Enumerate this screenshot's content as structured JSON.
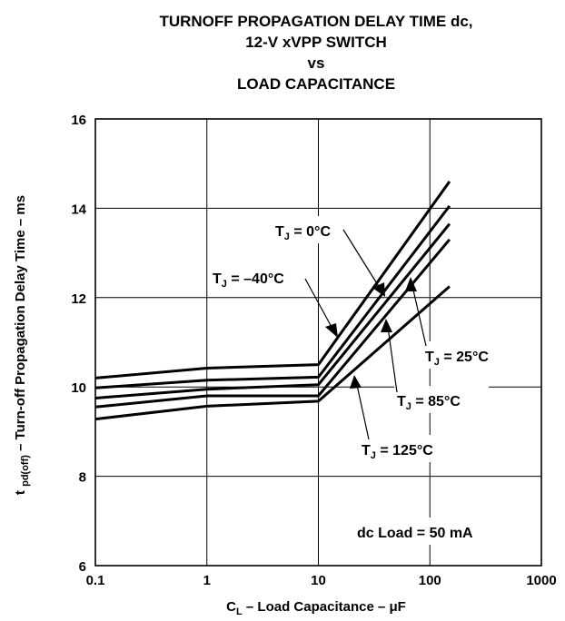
{
  "chart_data": {
    "type": "line",
    "title_lines": [
      "TURNOFF PROPAGATION DELAY TIME dc,",
      "12-V xVPP SWITCH",
      "vs",
      "LOAD CAPACITANCE"
    ],
    "xlabel": {
      "prefix": "C",
      "sub": "L",
      "suffix": " – Load Capacitance – μF"
    },
    "ylabel": {
      "prefix": "t ",
      "sub": "pd(off)",
      "suffix": " – Turn-off Propagation Delay Time – ms"
    },
    "x_scale": "log",
    "xlim": [
      0.1,
      1000
    ],
    "ylim": [
      6,
      16
    ],
    "x_ticks": [
      {
        "value": 0.1,
        "label": "0.1"
      },
      {
        "value": 1,
        "label": "1"
      },
      {
        "value": 10,
        "label": "10"
      },
      {
        "value": 100,
        "label": "100"
      },
      {
        "value": 1000,
        "label": "1000"
      }
    ],
    "y_ticks": [
      {
        "value": 6,
        "label": "6"
      },
      {
        "value": 8,
        "label": "8"
      },
      {
        "value": 10,
        "label": "10"
      },
      {
        "value": 12,
        "label": "12"
      },
      {
        "value": 14,
        "label": "14"
      },
      {
        "value": 16,
        "label": "16"
      }
    ],
    "grid": true,
    "series": [
      {
        "name": "TJ = −40°C",
        "x": [
          0.1,
          1,
          10,
          150
        ],
        "y": [
          10.2,
          10.42,
          10.5,
          14.6
        ]
      },
      {
        "name": "TJ = 0°C",
        "x": [
          0.1,
          1,
          10,
          150
        ],
        "y": [
          9.98,
          10.15,
          10.22,
          14.05
        ]
      },
      {
        "name": "TJ = 25°C",
        "x": [
          0.1,
          1,
          10,
          150
        ],
        "y": [
          9.75,
          9.95,
          10.05,
          13.65
        ]
      },
      {
        "name": "TJ = 85°C",
        "x": [
          0.1,
          1,
          10,
          150
        ],
        "y": [
          9.55,
          9.8,
          9.8,
          13.3
        ]
      },
      {
        "name": "TJ = 125°C",
        "x": [
          0.1,
          1,
          10,
          150
        ],
        "y": [
          9.28,
          9.57,
          9.68,
          12.25
        ]
      }
    ],
    "annotations": [
      {
        "prefix": "T",
        "sub": "J",
        "suffix": " = 0°C"
      },
      {
        "prefix": "T",
        "sub": "J",
        "suffix": " = –40°C"
      },
      {
        "prefix": "T",
        "sub": "J",
        "suffix": " = 25°C"
      },
      {
        "prefix": "T",
        "sub": "J",
        "suffix": " = 85°C"
      },
      {
        "prefix": "T",
        "sub": "J",
        "suffix": " = 125°C"
      }
    ],
    "note": "dc Load = 50 mA"
  }
}
